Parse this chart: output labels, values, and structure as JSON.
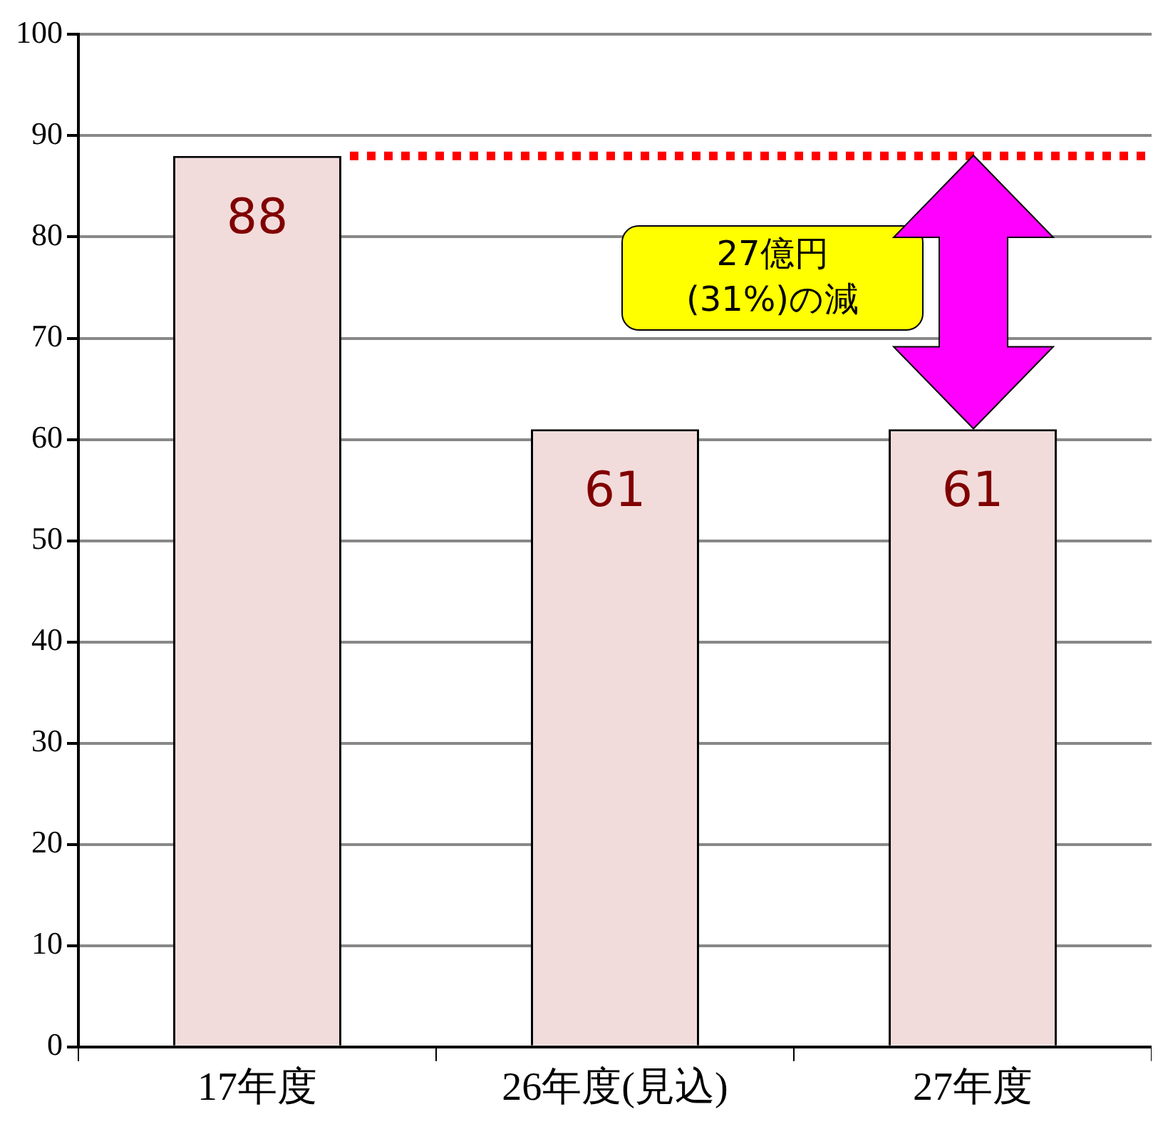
{
  "chart_data": {
    "type": "bar",
    "categories": [
      "17年度",
      "26年度(見込)",
      "27年度"
    ],
    "values": [
      88,
      61,
      61
    ],
    "color": "#f2dcdb",
    "ylim": [
      0,
      100
    ],
    "yticks": [
      0,
      10,
      20,
      30,
      40,
      50,
      60,
      70,
      80,
      90,
      100
    ],
    "grid": "y",
    "legend": false,
    "data_labels": true,
    "ref_lines": [
      {
        "axis": "y",
        "value": 88,
        "label": null,
        "color": "#ff0000",
        "line_style": "dotted"
      }
    ],
    "annotations": [
      "27億円\n(31%)の減"
    ]
  }
}
